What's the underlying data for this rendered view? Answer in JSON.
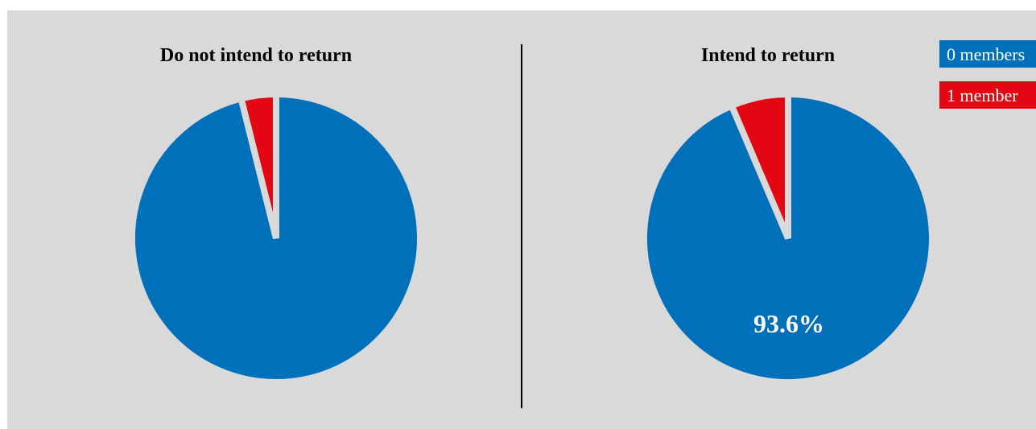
{
  "chart_data": [
    {
      "type": "pie",
      "title": "Do not intend to return",
      "slices": [
        {
          "label": "0 members",
          "value": 96.1,
          "color": "#0070BA"
        },
        {
          "label": "1 member",
          "value": 3.9,
          "color": "#E30613"
        }
      ],
      "data_labels": [
        "",
        ""
      ]
    },
    {
      "type": "pie",
      "title": "Intend to return",
      "slices": [
        {
          "label": "0 members",
          "value": 93.6,
          "color": "#0070BA"
        },
        {
          "label": "1 member",
          "value": 6.4,
          "color": "#E30613"
        }
      ],
      "data_labels": [
        "93.6%",
        ""
      ]
    }
  ],
  "legend": {
    "placement": "top-right",
    "entries": [
      {
        "label": "0 members",
        "color": "#0070BA"
      },
      {
        "label": "1 member",
        "color": "#E30613"
      }
    ]
  },
  "colors": {
    "background": "#D9D9D9",
    "divider": "#000000"
  }
}
